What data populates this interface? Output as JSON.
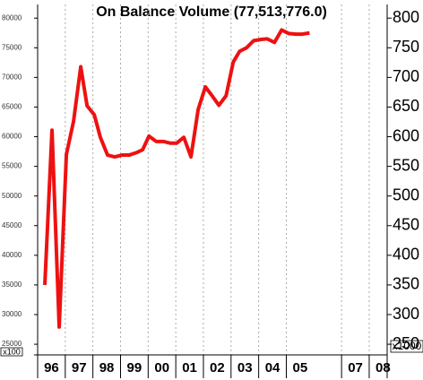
{
  "chart_data": {
    "type": "line",
    "title": "On Balance Volume (77,513,776.0)",
    "y_unit_label": "x100",
    "y2_unit_label": "x1000",
    "x": [
      1996.26,
      1996.52,
      1996.78,
      1997.04,
      1997.3,
      1997.56,
      1997.79,
      1998.05,
      1998.27,
      1998.53,
      1998.79,
      1999.05,
      1999.31,
      1999.57,
      1999.8,
      2000.03,
      2000.29,
      2000.55,
      2000.81,
      2001.03,
      2001.29,
      2001.55,
      2001.81,
      2002.07,
      2002.3,
      2002.56,
      2002.82,
      2003.08,
      2003.31,
      2003.56,
      2003.82,
      2004.08,
      2004.31,
      2004.57,
      2004.83,
      2005.09,
      2005.35,
      2005.58,
      2005.84
    ],
    "series": [
      {
        "name": "On Balance Volume",
        "color": "#ee1111",
        "values": [
          35000,
          61100,
          27900,
          57000,
          62600,
          71800,
          65200,
          63700,
          59900,
          56900,
          56600,
          56900,
          56900,
          57300,
          57800,
          60100,
          59200,
          59200,
          58900,
          58900,
          59900,
          56600,
          64600,
          68400,
          67000,
          65300,
          66900,
          72600,
          74400,
          75000,
          76200,
          76400,
          76500,
          75900,
          78000,
          77400,
          77300,
          77300,
          77500
        ]
      }
    ],
    "xlim": [
      1996,
      2008.65
    ],
    "xticks": [
      {
        "value": 1996,
        "label": "96"
      },
      {
        "value": 1997,
        "label": "97"
      },
      {
        "value": 1998,
        "label": "98"
      },
      {
        "value": 1999,
        "label": "99"
      },
      {
        "value": 2000,
        "label": "00"
      },
      {
        "value": 2001,
        "label": "01"
      },
      {
        "value": 2002,
        "label": "02"
      },
      {
        "value": 2003,
        "label": "03"
      },
      {
        "value": 2004,
        "label": "04"
      },
      {
        "value": 2005,
        "label": "05"
      },
      {
        "value": 2007,
        "label": "07"
      },
      {
        "value": 2008,
        "label": "08"
      }
    ],
    "ylim": [
      23200,
      82300
    ],
    "yticks": [
      25000,
      30000,
      35000,
      40000,
      45000,
      50000,
      55000,
      60000,
      65000,
      70000,
      75000,
      80000
    ],
    "y2lim": [
      232,
      823
    ],
    "y2ticks": [
      250,
      300,
      350,
      400,
      450,
      500,
      550,
      600,
      650,
      700,
      750,
      800
    ],
    "grid": true
  }
}
